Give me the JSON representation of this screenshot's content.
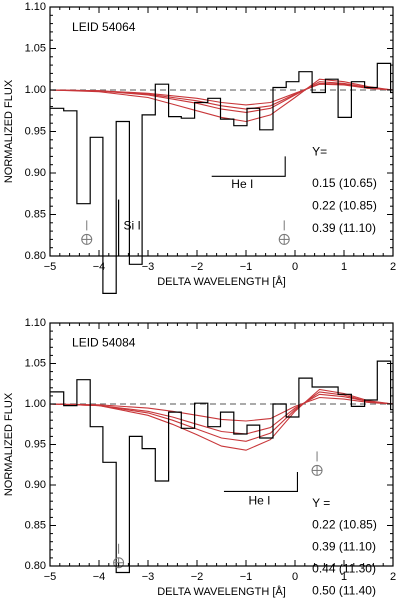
{
  "chart_data": [
    {
      "type": "line",
      "label": "LEID 54064",
      "xlabel": "DELTA WAVELENGTH [Å]",
      "ylabel": "NORMALIZED FLUX",
      "xlim": [
        -5,
        2
      ],
      "ylim": [
        0.8,
        1.1
      ],
      "xticks": [
        -5,
        -4,
        -3,
        -2,
        -1,
        0,
        1,
        2
      ],
      "yticks": [
        0.8,
        0.85,
        0.9,
        0.95,
        1.0,
        1.05,
        1.1
      ],
      "reference_line": 1.0,
      "observed_step": {
        "edges": [
          -5.0,
          -4.72,
          -4.45,
          -4.18,
          -3.92,
          -3.65,
          -3.38,
          -3.12,
          -2.85,
          -2.58,
          -2.32,
          -2.05,
          -1.78,
          -1.52,
          -1.25,
          -0.98,
          -0.72,
          -0.45,
          -0.18,
          0.08,
          0.35,
          0.62,
          0.88,
          1.15,
          1.42,
          1.68,
          1.95,
          2.0
        ],
        "flux": [
          0.978,
          0.975,
          0.863,
          0.943,
          0.755,
          0.962,
          0.79,
          0.97,
          1.007,
          0.968,
          0.966,
          0.985,
          0.99,
          0.965,
          0.957,
          0.978,
          0.952,
          1.003,
          1.01,
          1.022,
          0.997,
          1.013,
          0.967,
          1.01,
          1.003,
          1.032,
          0.997
        ]
      },
      "model_series": [
        {
          "name": "0.15 (10.65)",
          "x": [
            -5,
            -4,
            -3,
            -2.5,
            -2,
            -1.5,
            -1,
            -0.5,
            0,
            0.5,
            1,
            1.5,
            2
          ],
          "values": [
            1.0,
            0.999,
            0.996,
            0.993,
            0.99,
            0.985,
            0.982,
            0.985,
            0.996,
            1.007,
            1.006,
            1.002,
            1.0
          ]
        },
        {
          "name": "0.22 (10.85)",
          "x": [
            -5,
            -4,
            -3,
            -2.5,
            -2,
            -1.5,
            -1,
            -0.5,
            0,
            0.5,
            1,
            1.5,
            2
          ],
          "values": [
            1.0,
            0.999,
            0.994,
            0.989,
            0.984,
            0.977,
            0.973,
            0.978,
            0.994,
            1.01,
            1.008,
            1.003,
            1.0
          ]
        },
        {
          "name": "0.39 (11.10)",
          "x": [
            -5,
            -4,
            -3,
            -2.5,
            -2,
            -1.5,
            -1,
            -0.5,
            0,
            0.5,
            1,
            1.5,
            2
          ],
          "values": [
            1.0,
            0.998,
            0.991,
            0.983,
            0.975,
            0.967,
            0.962,
            0.97,
            0.991,
            1.013,
            1.01,
            1.004,
            1.0
          ]
        },
        {
          "name": "",
          "x": [
            -5,
            -4,
            -3,
            -2.5,
            -2,
            -1.5,
            -1,
            -0.5,
            0,
            0.5,
            1,
            1.5,
            2
          ],
          "values": [
            1.0,
            0.999,
            0.995,
            0.991,
            0.987,
            0.981,
            0.977,
            0.981,
            0.995,
            1.008,
            1.007,
            1.002,
            1.0
          ]
        }
      ],
      "annotations": [
        {
          "text": "LEID 54064",
          "x": -4.55,
          "y": 1.075
        },
        {
          "text": "Si I",
          "x": -3.5,
          "y": 0.836
        },
        {
          "text": "He I",
          "x": -1.3,
          "y": 0.886
        },
        {
          "text": "Y=",
          "x": 0.35,
          "y": 0.925
        },
        {
          "text": "0.15 (10.65)",
          "x": 0.35,
          "y": 0.887
        },
        {
          "text": "0.22 (10.85)",
          "x": 0.35,
          "y": 0.86
        },
        {
          "text": "0.39 (11.10)",
          "x": 0.35,
          "y": 0.833
        }
      ],
      "he_bracket": {
        "x0": -1.7,
        "x1": -0.2,
        "y": 0.896,
        "ytop": 0.92
      },
      "si_line": {
        "x": -3.6,
        "y0": 0.868,
        "y1": 0.8
      },
      "earth_markers": [
        {
          "x": -4.25,
          "y": 0.82
        },
        {
          "x": -0.22,
          "y": 0.82
        }
      ]
    },
    {
      "type": "line",
      "label": "LEID 54084",
      "xlabel": "DELTA WAVELENGTH [Å]",
      "ylabel": "NORMALIZED FLUX",
      "xlim": [
        -5,
        2
      ],
      "ylim": [
        0.8,
        1.1
      ],
      "xticks": [
        -5,
        -4,
        -3,
        -2,
        -1,
        0,
        1,
        2
      ],
      "yticks": [
        0.8,
        0.85,
        0.9,
        0.95,
        1.0,
        1.05,
        1.1
      ],
      "reference_line": 1.0,
      "observed_step": {
        "edges": [
          -5.0,
          -4.72,
          -4.45,
          -4.18,
          -3.92,
          -3.65,
          -3.38,
          -3.12,
          -2.85,
          -2.58,
          -2.32,
          -2.05,
          -1.78,
          -1.52,
          -1.25,
          -0.98,
          -0.72,
          -0.45,
          -0.18,
          0.08,
          0.35,
          0.62,
          0.88,
          1.15,
          1.42,
          1.68,
          1.95,
          2.0
        ],
        "flux": [
          1.015,
          0.998,
          1.03,
          0.972,
          0.928,
          0.792,
          0.96,
          0.945,
          0.905,
          0.99,
          0.97,
          1.001,
          0.972,
          0.99,
          0.963,
          0.974,
          0.958,
          1.0,
          0.984,
          1.032,
          1.021,
          1.021,
          1.012,
          0.997,
          1.005,
          1.053,
          0.993
        ]
      },
      "model_series": [
        {
          "name": "0.22 (10.85)",
          "x": [
            -5,
            -4,
            -3,
            -2.5,
            -2,
            -1.5,
            -1,
            -0.5,
            0,
            0.5,
            1,
            1.5,
            2
          ],
          "values": [
            1.0,
            0.999,
            0.995,
            0.991,
            0.986,
            0.981,
            0.979,
            0.982,
            0.997,
            1.008,
            1.006,
            1.002,
            1.0
          ]
        },
        {
          "name": "0.39 (11.10)",
          "x": [
            -5,
            -4,
            -3,
            -2.5,
            -2,
            -1.5,
            -1,
            -0.5,
            0,
            0.5,
            1,
            1.5,
            2
          ],
          "values": [
            1.0,
            0.998,
            0.991,
            0.984,
            0.975,
            0.966,
            0.963,
            0.971,
            0.995,
            1.012,
            1.009,
            1.003,
            1.0
          ]
        },
        {
          "name": "0.44 (11.30)",
          "x": [
            -5,
            -4,
            -3,
            -2.5,
            -2,
            -1.5,
            -1,
            -0.5,
            0,
            0.5,
            1,
            1.5,
            2
          ],
          "values": [
            1.0,
            0.998,
            0.989,
            0.98,
            0.969,
            0.958,
            0.954,
            0.964,
            0.993,
            1.015,
            1.011,
            1.003,
            1.0
          ]
        },
        {
          "name": "0.50 (11.40)",
          "x": [
            -5,
            -4,
            -3,
            -2.5,
            -2,
            -1.5,
            -1,
            -0.5,
            0,
            0.5,
            1,
            1.5,
            2
          ],
          "values": [
            1.0,
            0.998,
            0.986,
            0.975,
            0.962,
            0.948,
            0.943,
            0.956,
            0.991,
            1.018,
            1.013,
            1.004,
            1.0
          ]
        }
      ],
      "annotations": [
        {
          "text": "LEID 54084",
          "x": -4.55,
          "y": 1.075
        },
        {
          "text": "He I",
          "x": -0.95,
          "y": 0.88
        },
        {
          "text": "Y =",
          "x": 0.35,
          "y": 0.877
        },
        {
          "text": "0.22 (10.85)",
          "x": 0.35,
          "y": 0.85
        },
        {
          "text": "0.39 (11.10)",
          "x": 0.35,
          "y": 0.823
        },
        {
          "text": "0.44 (11.30)",
          "x": 0.35,
          "y": 0.796
        },
        {
          "text": "0.50 (11.40)",
          "x": 0.35,
          "y": 0.769
        }
      ],
      "he_bracket": {
        "x0": -1.45,
        "x1": 0.05,
        "y": 0.892,
        "ytop": 0.916
      },
      "earth_markers": [
        {
          "x": -3.6,
          "y": 0.804
        },
        {
          "x": 0.45,
          "y": 0.918
        }
      ]
    }
  ]
}
